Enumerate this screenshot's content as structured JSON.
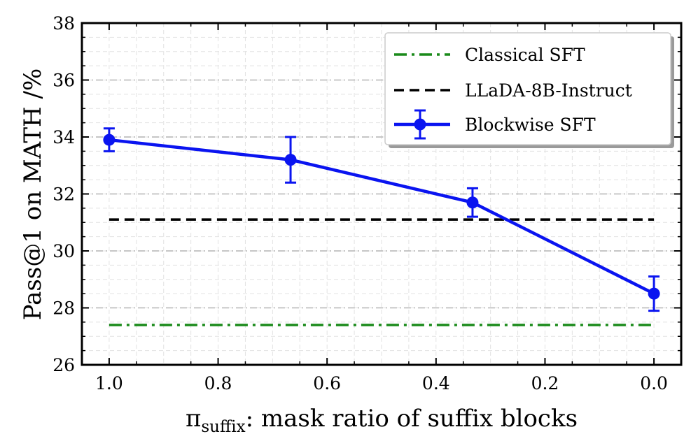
{
  "chart_data": {
    "type": "line",
    "xlabel_symbol": "π",
    "xlabel_subscript": "suffix",
    "xlabel_rest": ": mask ratio of suffix blocks",
    "ylabel": "Pass@1 on MATH /%",
    "xlim": [
      1.05,
      -0.05
    ],
    "ylim": [
      26,
      38
    ],
    "x_inverted": true,
    "xticks": [
      "1.0",
      "0.8",
      "0.6",
      "0.4",
      "0.2",
      "0.0"
    ],
    "yticks": [
      "26",
      "28",
      "30",
      "32",
      "34",
      "36",
      "38"
    ],
    "grid": true,
    "legend_position": "top-right",
    "series": [
      {
        "name": "Classical SFT",
        "kind": "hline",
        "style": "dashdot",
        "color": "#1a8a1a",
        "y": 27.4,
        "x_range": [
          1.0,
          0.0
        ]
      },
      {
        "name": "LLaDA-8B-Instruct",
        "kind": "hline",
        "style": "dashed",
        "color": "#000000",
        "y": 31.1,
        "x_range": [
          1.0,
          0.0
        ]
      },
      {
        "name": "Blockwise SFT",
        "kind": "errorbar",
        "style": "solid",
        "color": "#0a14f0",
        "x": [
          1.0,
          0.667,
          0.333,
          0.0
        ],
        "y": [
          33.9,
          33.2,
          31.7,
          28.5
        ],
        "yerr": [
          0.4,
          0.8,
          0.5,
          0.6
        ]
      }
    ]
  }
}
